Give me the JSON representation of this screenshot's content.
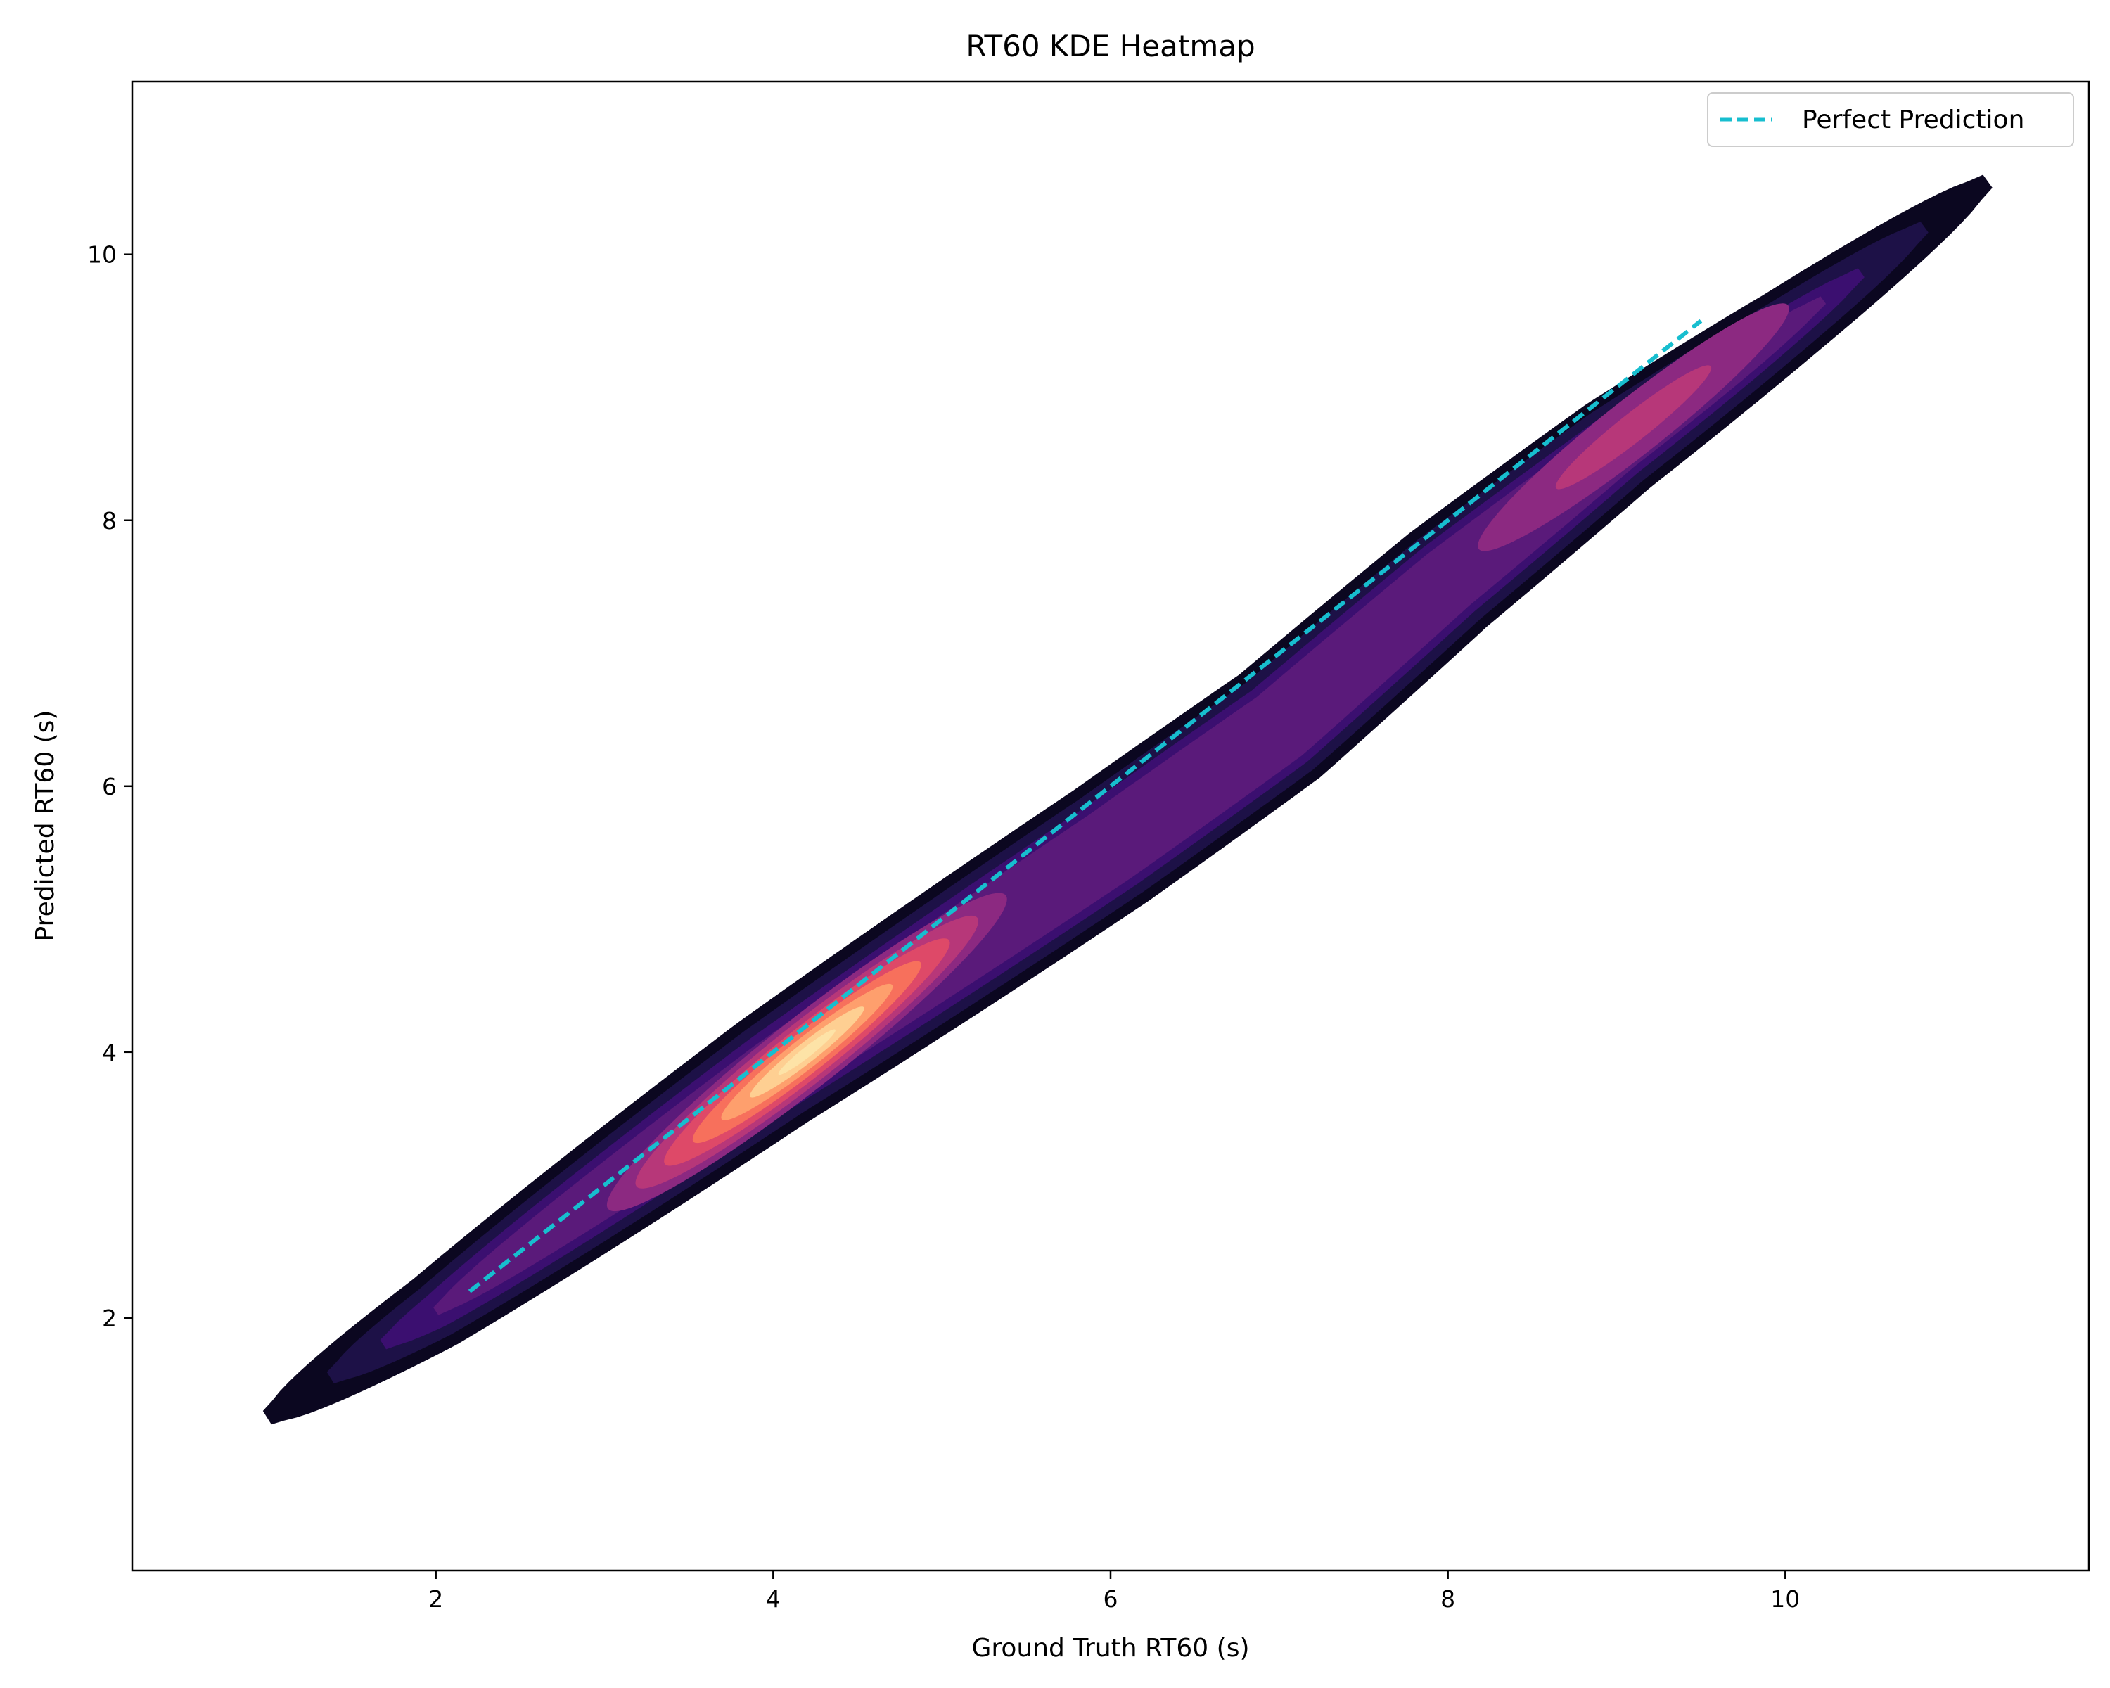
{
  "chart_data": {
    "type": "heatmap",
    "title": "RT60 KDE Heatmap",
    "xlabel": "Ground Truth RT60 (s)",
    "ylabel": "Predicted RT60 (s)",
    "xlim": [
      0.2,
      11.8
    ],
    "ylim": [
      0.1,
      11.3
    ],
    "xticks": [
      2,
      4,
      6,
      8,
      10
    ],
    "yticks": [
      2,
      4,
      6,
      8,
      10
    ],
    "x_tick_labels": [
      "2",
      "4",
      "6",
      "8",
      "10"
    ],
    "y_tick_labels": [
      "2",
      "4",
      "6",
      "8",
      "10"
    ],
    "grid": false,
    "legend": {
      "placement": "top-right",
      "entries": [
        "Perfect Prediction"
      ]
    },
    "colormap": "magma",
    "colors": {
      "reference_line": "#17becf",
      "levels": [
        "#0b0720",
        "#1d1147",
        "#3b0f70",
        "#5a1a7a",
        "#8c2981",
        "#b73779",
        "#de4968",
        "#f7705c",
        "#fe9f6d",
        "#fecf92",
        "#fde3a7"
      ]
    },
    "density_centerline": [
      [
        1.0,
        1.25
      ],
      [
        2.0,
        2.05
      ],
      [
        3.0,
        2.95
      ],
      [
        4.0,
        3.85
      ],
      [
        5.0,
        4.7
      ],
      [
        6.0,
        5.55
      ],
      [
        7.0,
        6.45
      ],
      [
        8.0,
        7.55
      ],
      [
        9.0,
        8.55
      ],
      [
        10.0,
        9.45
      ],
      [
        11.2,
        10.55
      ]
    ],
    "density_peaks": [
      {
        "x": 4.2,
        "y": 4.0,
        "level": 10
      },
      {
        "x": 9.1,
        "y": 8.7,
        "level": 5
      }
    ],
    "series": [
      {
        "name": "Perfect Prediction",
        "style": "dashed",
        "x": [
          2.2,
          9.5
        ],
        "y": [
          2.2,
          9.5
        ]
      }
    ]
  }
}
